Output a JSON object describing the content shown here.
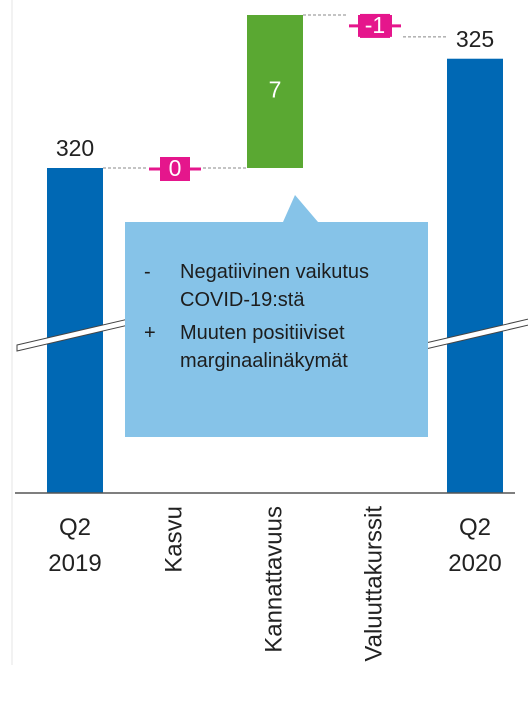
{
  "chart_data": {
    "type": "waterfall",
    "categories": [
      "Q2 2019",
      "Kasvu",
      "Kannattavuus",
      "Valuuttakurssit",
      "Q2 2020"
    ],
    "values": [
      320,
      0,
      7,
      -1,
      325
    ],
    "colors": {
      "total": "#0068b4",
      "increase": "#5aa832",
      "decrease": "#e5168c"
    },
    "axis_break": true,
    "annotation": [
      {
        "bullet": "-",
        "text": "Negatiivinen vaikutus COVID-19:stä"
      },
      {
        "bullet": "+",
        "text": "Muuten positiiviset marginaalinäkymät"
      }
    ]
  }
}
